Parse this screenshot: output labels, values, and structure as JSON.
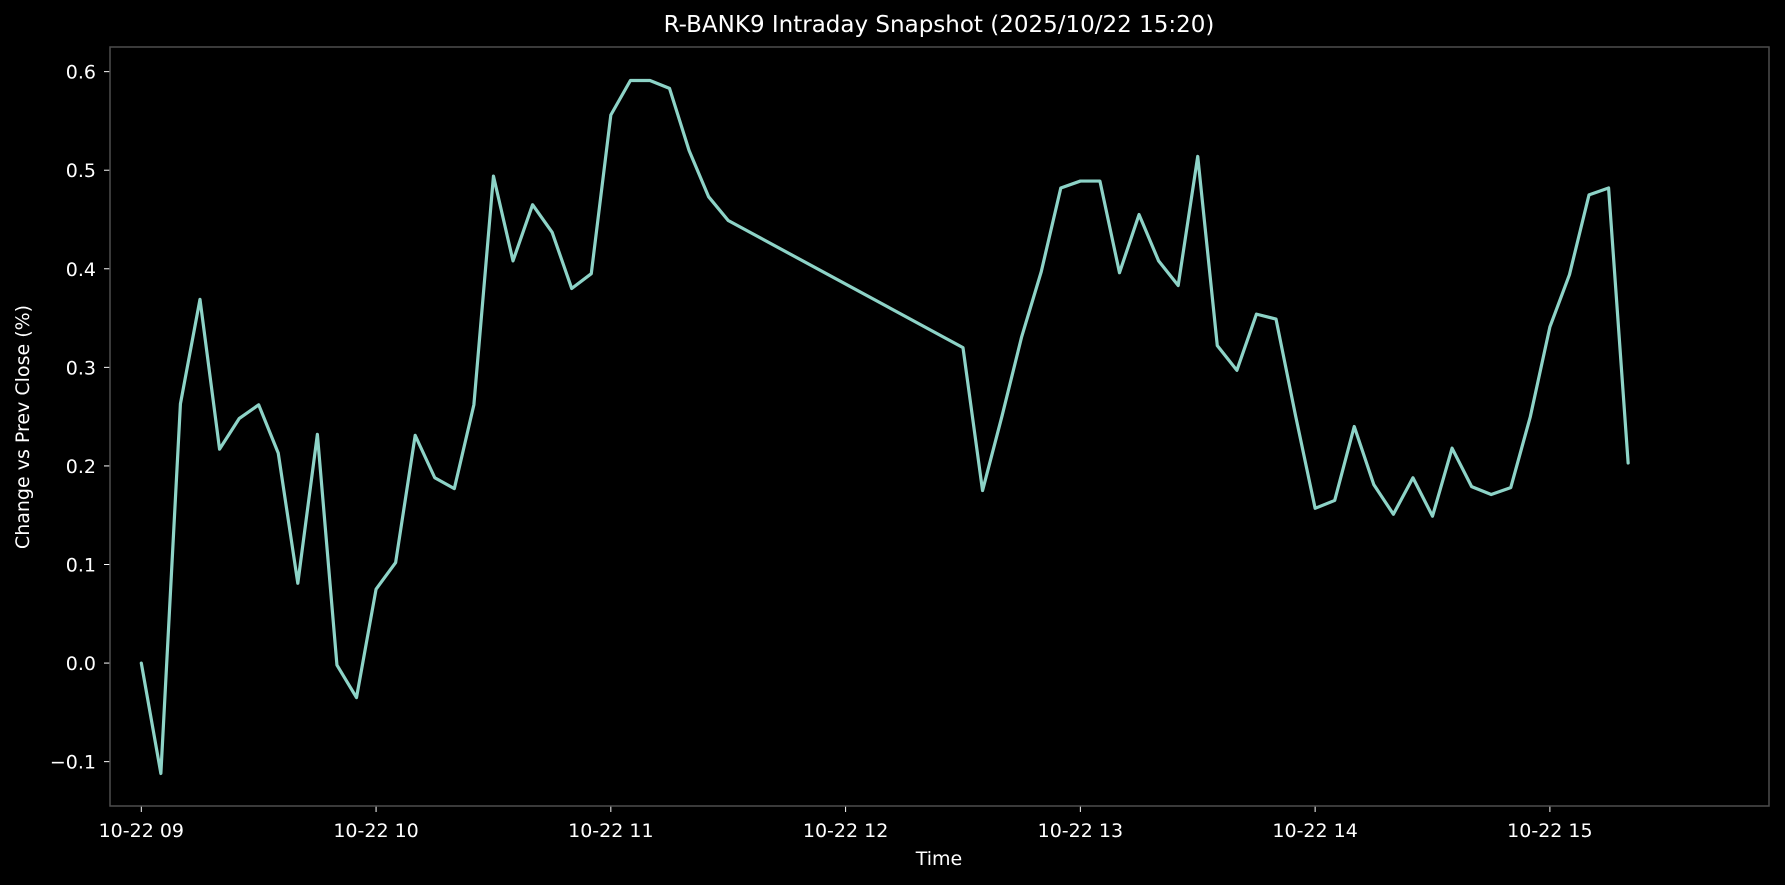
{
  "chart_data": {
    "type": "line",
    "title": "R-BANK9 Intraday Snapshot (2025/10/22 15:20)",
    "xlabel": "Time",
    "ylabel": "Change vs Prev Close (%)",
    "x_axis_type": "time",
    "xlim": [
      "2025-10-22 08:52",
      "2025-10-22 15:56"
    ],
    "ylim": [
      -0.145,
      0.625
    ],
    "x_ticks": [
      {
        "time": "2025-10-22 09:00",
        "label": "10-22 09"
      },
      {
        "time": "2025-10-22 10:00",
        "label": "10-22 10"
      },
      {
        "time": "2025-10-22 11:00",
        "label": "10-22 11"
      },
      {
        "time": "2025-10-22 12:00",
        "label": "10-22 12"
      },
      {
        "time": "2025-10-22 13:00",
        "label": "10-22 13"
      },
      {
        "time": "2025-10-22 14:00",
        "label": "10-22 14"
      },
      {
        "time": "2025-10-22 15:00",
        "label": "10-22 15"
      }
    ],
    "y_ticks": [
      {
        "value": -0.1,
        "label": "−0.1"
      },
      {
        "value": 0.0,
        "label": "0.0"
      },
      {
        "value": 0.1,
        "label": "0.1"
      },
      {
        "value": 0.2,
        "label": "0.2"
      },
      {
        "value": 0.3,
        "label": "0.3"
      },
      {
        "value": 0.4,
        "label": "0.4"
      },
      {
        "value": 0.5,
        "label": "0.5"
      },
      {
        "value": 0.6,
        "label": "0.6"
      }
    ],
    "grid": false,
    "colors": {
      "background": "#000000",
      "axes_edge": "#4d4d4d",
      "text": "#ffffff",
      "line": "#8dd3c7"
    },
    "series": [
      {
        "x": [
          "2025-10-22 09:00",
          "2025-10-22 09:05",
          "2025-10-22 09:10",
          "2025-10-22 09:15",
          "2025-10-22 09:20",
          "2025-10-22 09:25",
          "2025-10-22 09:30",
          "2025-10-22 09:35",
          "2025-10-22 09:40",
          "2025-10-22 09:45",
          "2025-10-22 09:50",
          "2025-10-22 09:55",
          "2025-10-22 10:00",
          "2025-10-22 10:05",
          "2025-10-22 10:10",
          "2025-10-22 10:15",
          "2025-10-22 10:20",
          "2025-10-22 10:25",
          "2025-10-22 10:30",
          "2025-10-22 10:35",
          "2025-10-22 10:40",
          "2025-10-22 10:45",
          "2025-10-22 10:50",
          "2025-10-22 10:55",
          "2025-10-22 11:00",
          "2025-10-22 11:05",
          "2025-10-22 11:10",
          "2025-10-22 11:15",
          "2025-10-22 11:20",
          "2025-10-22 11:25",
          "2025-10-22 11:30",
          "2025-10-22 12:30",
          "2025-10-22 12:35",
          "2025-10-22 12:40",
          "2025-10-22 12:45",
          "2025-10-22 12:50",
          "2025-10-22 12:55",
          "2025-10-22 13:00",
          "2025-10-22 13:05",
          "2025-10-22 13:10",
          "2025-10-22 13:15",
          "2025-10-22 13:20",
          "2025-10-22 13:25",
          "2025-10-22 13:30",
          "2025-10-22 13:35",
          "2025-10-22 13:40",
          "2025-10-22 13:45",
          "2025-10-22 13:50",
          "2025-10-22 13:55",
          "2025-10-22 14:00",
          "2025-10-22 14:05",
          "2025-10-22 14:10",
          "2025-10-22 14:15",
          "2025-10-22 14:20",
          "2025-10-22 14:25",
          "2025-10-22 14:30",
          "2025-10-22 14:35",
          "2025-10-22 14:40",
          "2025-10-22 14:45",
          "2025-10-22 14:50",
          "2025-10-22 14:55",
          "2025-10-22 15:00",
          "2025-10-22 15:05",
          "2025-10-22 15:10",
          "2025-10-22 15:15",
          "2025-10-22 15:20"
        ],
        "values": [
          0.0,
          -0.112,
          0.263,
          0.369,
          0.217,
          0.248,
          0.262,
          0.213,
          0.081,
          0.232,
          -0.002,
          -0.035,
          0.075,
          0.102,
          0.231,
          0.188,
          0.177,
          0.262,
          0.494,
          0.408,
          0.465,
          0.437,
          0.38,
          0.395,
          0.556,
          0.591,
          0.591,
          0.583,
          0.52,
          0.473,
          0.449,
          0.32,
          0.175,
          0.251,
          0.331,
          0.397,
          0.482,
          0.489,
          0.489,
          0.396,
          0.455,
          0.408,
          0.383,
          0.514,
          0.322,
          0.297,
          0.354,
          0.349,
          0.251,
          0.157,
          0.165,
          0.24,
          0.181,
          0.151,
          0.188,
          0.149,
          0.218,
          0.179,
          0.171,
          0.178,
          0.25,
          0.341,
          0.394,
          0.475,
          0.482,
          0.203
        ]
      }
    ]
  }
}
